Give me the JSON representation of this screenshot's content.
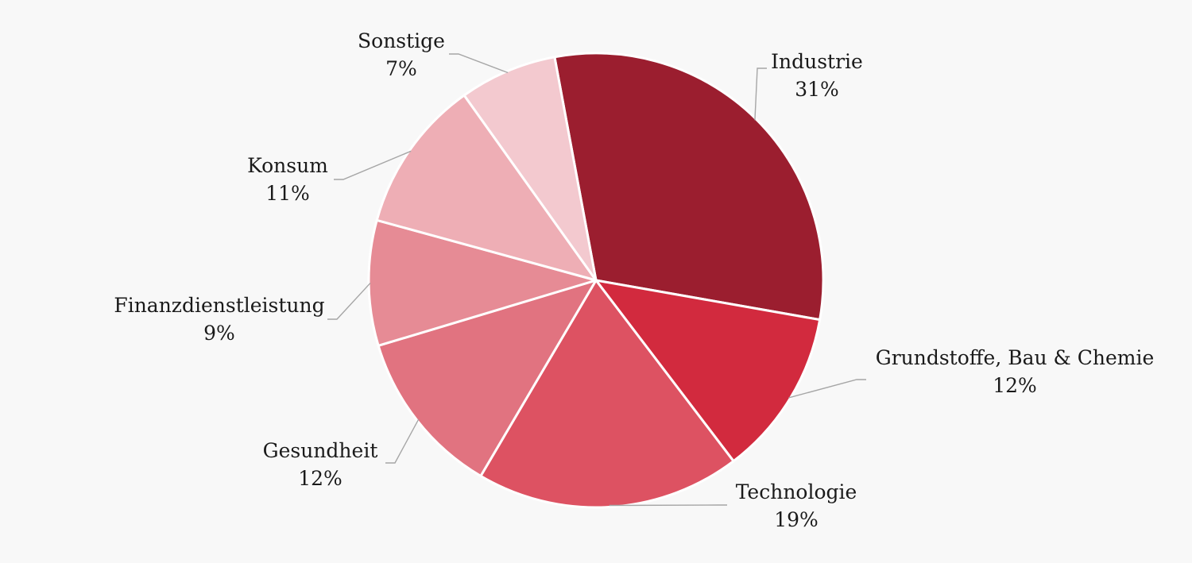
{
  "chart_data": {
    "type": "pie",
    "title": "",
    "slices": [
      {
        "name": "Industrie",
        "value": 31,
        "label": "31%",
        "color": "#9b1e2f"
      },
      {
        "name": "Grundstoffe, Bau & Chemie",
        "value": 12,
        "label": "12%",
        "color": "#d22a3e"
      },
      {
        "name": "Technologie",
        "value": 19,
        "label": "19%",
        "color": "#dd5262"
      },
      {
        "name": "Gesundheit",
        "value": 12,
        "label": "12%",
        "color": "#e17380"
      },
      {
        "name": "Finanzdienstleistung",
        "value": 9,
        "label": "9%",
        "color": "#e68b95"
      },
      {
        "name": "Konsum",
        "value": 11,
        "label": "11%",
        "color": "#eeaeb5"
      },
      {
        "name": "Sonstige",
        "value": 7,
        "label": "7%",
        "color": "#f3c9cf"
      }
    ],
    "legend": "none",
    "data_labels": "outside-with-leader-lines"
  },
  "colors": {
    "background": "#f8f8f8",
    "leader_line": "#a6a6a6",
    "slice_border": "#ffffff",
    "text": "#1a1a1a"
  }
}
